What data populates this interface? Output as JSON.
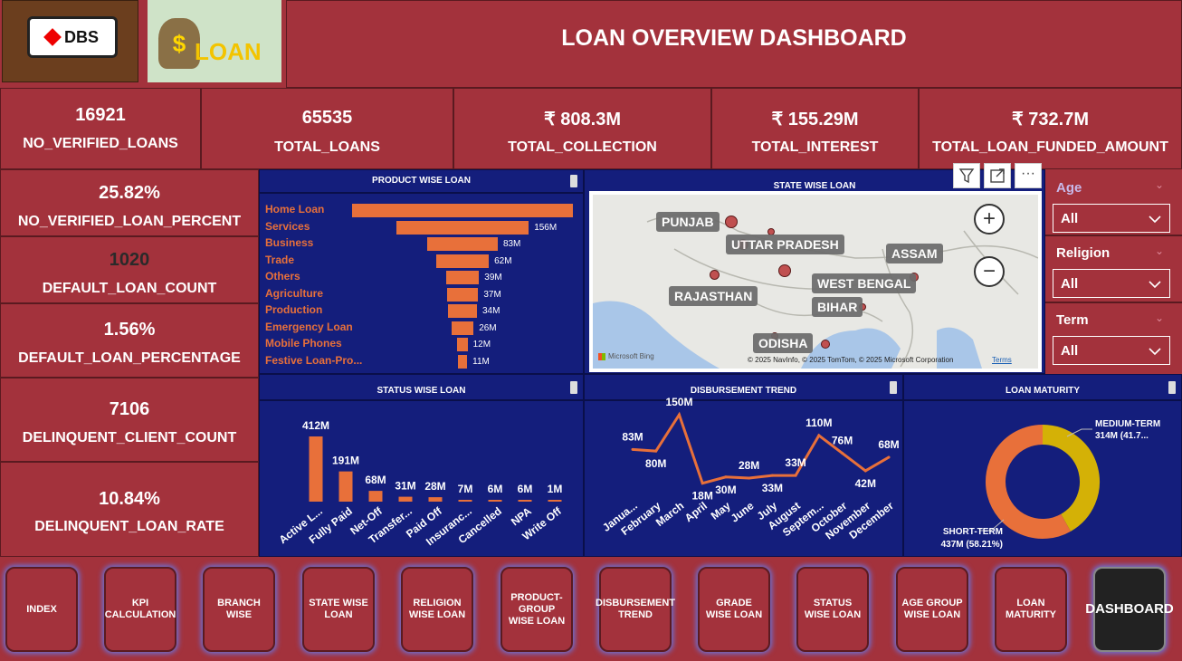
{
  "header": {
    "title": "LOAN OVERVIEW DASHBOARD",
    "logo_dbs": "DBS",
    "logo_loan": "LOAN"
  },
  "kpis_top": [
    {
      "value": "16921",
      "label": "NO_VERIFIED_LOANS"
    },
    {
      "value": "65535",
      "label": "TOTAL_LOANS"
    },
    {
      "value": "₹ 808.3M",
      "label": "TOTAL_COLLECTION"
    },
    {
      "value": "₹ 155.29M",
      "label": "TOTAL_INTEREST"
    },
    {
      "value": "₹ 732.7M",
      "label": "TOTAL_LOAN_FUNDED_AMOUNT"
    }
  ],
  "kpis_left": [
    {
      "value": "25.82%",
      "label": "NO_VERIFIED_LOAN_PERCENT"
    },
    {
      "value": "1020",
      "label": "DEFAULT_LOAN_COUNT"
    },
    {
      "value": "1.56%",
      "label": "DEFAULT_LOAN_PERCENTAGE"
    },
    {
      "value": "7106",
      "label": "DELINQUENT_CLIENT_COUNT"
    },
    {
      "value": "10.84%",
      "label": "DELINQUENT_LOAN_RATE"
    }
  ],
  "product_chart": {
    "title": "PRODUCT WISE LOAN"
  },
  "state_map": {
    "title": "STATE WISE LOAN",
    "labels": [
      "PUNJAB",
      "UTTAR PRADESH",
      "ASSAM",
      "RAJASTHAN",
      "WEST BENGAL",
      "BIHAR",
      "ODISHA"
    ],
    "credit": "© 2025 NavInfo, © 2025 TomTom, © 2025 Microsoft Corporation",
    "terms": "Terms",
    "bing": "Microsoft Bing",
    "zoom_in": "+",
    "zoom_out": "−",
    "more": "···"
  },
  "slicers": [
    {
      "title": "Age",
      "value": "All"
    },
    {
      "title": "Religion",
      "value": "All"
    },
    {
      "title": "Term",
      "value": "All"
    }
  ],
  "status_chart": {
    "title": "STATUS WISE LOAN"
  },
  "trend_chart": {
    "title": "DISBURSEMENT TREND"
  },
  "maturity_chart": {
    "title": "LOAN MATURITY"
  },
  "nav": [
    "INDEX",
    "KPI CALCULATION",
    "BRANCH WISE",
    "STATE WISE LOAN",
    "RELIGION WISE LOAN",
    "PRODUCT-GROUP WISE LOAN",
    "DISBURSEMENT TREND",
    "GRADE WISE LOAN",
    "STATUS WISE LOAN",
    "AGE GROUP WISE LOAN",
    "LOAN MATURITY",
    "DASHBOARD"
  ],
  "colors": {
    "bg": "#a3323c",
    "panel": "#141e7c",
    "accent": "#e8703a",
    "gold": "#d4b106"
  },
  "chart_data": [
    {
      "type": "bar",
      "orientation": "horizontal",
      "title": "PRODUCT WISE LOAN",
      "categories": [
        "Home Loan",
        "Services",
        "Business",
        "Trade",
        "Others",
        "Agriculture",
        "Production",
        "Emergency Loan",
        "Mobile Phones",
        "Festive Loan-Pro..."
      ],
      "values": [
        260,
        156,
        83,
        62,
        39,
        37,
        34,
        26,
        12,
        11
      ],
      "labels": [
        "",
        "156M",
        "83M",
        "62M",
        "39M",
        "37M",
        "34M",
        "26M",
        "12M",
        "11M"
      ],
      "unit": "M"
    },
    {
      "type": "bar",
      "title": "STATUS WISE LOAN",
      "categories": [
        "Active L...",
        "Fully Paid",
        "Net-Off",
        "Transfer...",
        "Paid Off",
        "Insuranc...",
        "Cancelled",
        "NPA",
        "Write Off"
      ],
      "values": [
        412,
        191,
        68,
        31,
        28,
        7,
        6,
        6,
        1
      ],
      "labels": [
        "412M",
        "191M",
        "68M",
        "31M",
        "28M",
        "7M",
        "6M",
        "6M",
        "1M"
      ],
      "unit": "M"
    },
    {
      "type": "line",
      "title": "DISBURSEMENT TREND",
      "categories": [
        "Janua...",
        "February",
        "March",
        "April",
        "May",
        "June",
        "July",
        "August",
        "Septem...",
        "October",
        "November",
        "December"
      ],
      "values": [
        83,
        80,
        150,
        18,
        30,
        28,
        33,
        33,
        110,
        76,
        42,
        68
      ],
      "labels": [
        "83M",
        "80M",
        "150M",
        "18M",
        "30M",
        "28M",
        "33M",
        "33M",
        "110M",
        "76M",
        "42M",
        "68M"
      ],
      "unit": "M"
    },
    {
      "type": "pie",
      "title": "LOAN MATURITY",
      "categories": [
        "MEDIUM-TERM",
        "SHORT-TERM"
      ],
      "values": [
        314,
        437
      ],
      "labels": [
        "314M (41.7...",
        "437M (58.21%)"
      ],
      "colors": [
        "#d4b106",
        "#e8703a"
      ]
    }
  ]
}
